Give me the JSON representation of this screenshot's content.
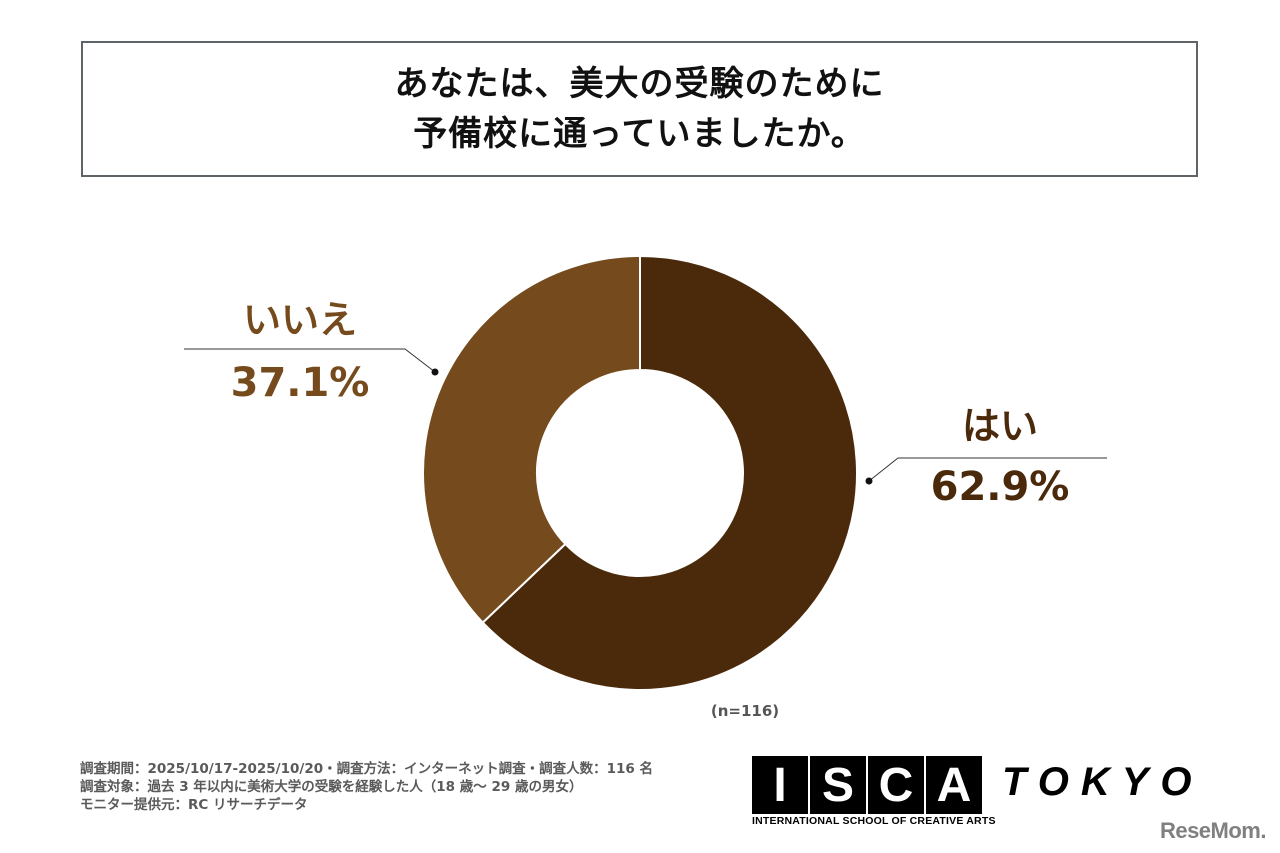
{
  "title": {
    "line1": "あなたは、美大の受験のために",
    "line2": "予備校に通っていましたか。"
  },
  "colors": {
    "yes": "#4b2a0c",
    "no": "#754b1d",
    "title_border": "#5f6469"
  },
  "labels": {
    "no": {
      "category": "いいえ",
      "percent": "37.1%"
    },
    "yes": {
      "category": "はい",
      "percent": "62.9%"
    }
  },
  "sample_note": "(n=116)",
  "footer": {
    "line1": "調査期間：2025/10/17-2025/10/20・調査方法：インターネット調査・調査人数：116 名",
    "line2": "調査対象：過去 3 年以内に美術大学の受験を経験した人（18 歳～ 29 歳の男女）",
    "line3": "モニター提供元：RC リサーチデータ"
  },
  "logo": {
    "letters": [
      "I",
      "S",
      "C",
      "A"
    ],
    "tokyo": "TOKYO",
    "subtitle": "INTERNATIONAL SCHOOL OF CREATIVE ARTS"
  },
  "watermark": "ReseMom.",
  "chart_data": {
    "type": "pie",
    "variant": "donut",
    "title": "あなたは、美大の受験のために予備校に通っていましたか。",
    "categories": [
      "はい",
      "いいえ"
    ],
    "values": [
      62.9,
      37.1
    ],
    "unit": "%",
    "colors": [
      "#4b2a0c",
      "#754b1d"
    ],
    "start_angle": "12 o'clock, clockwise",
    "n": 116,
    "legend": "none (callout labels)"
  }
}
